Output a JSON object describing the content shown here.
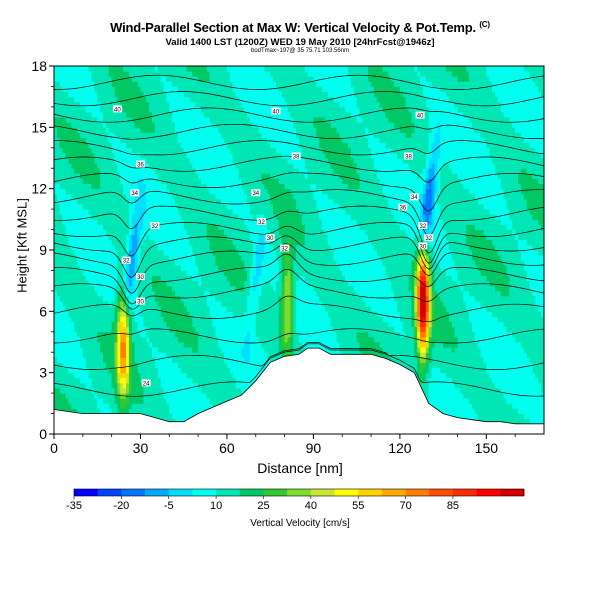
{
  "header": {
    "title": "Wind-Parallel Section at Max W: Vertical Velocity & Pot.Temp.",
    "title_mark": "(C)",
    "subtitle": "Valid 1400 LST (1200Z) WED 19 May 2010 [24hrFcst@1946z]",
    "small_note": "bodTmax~197@ 35 75.71 103.56nm"
  },
  "chart_data": {
    "type": "heatmap",
    "title": "Wind-Parallel Section at Max W: Vertical Velocity & Pot.Temp.",
    "xlabel": "Distance [nm]",
    "ylabel": "Height [Kft MSL]",
    "xlim": [
      0,
      170
    ],
    "ylim": [
      0,
      18
    ],
    "x_ticks": [
      "0",
      "30",
      "60",
      "90",
      "120",
      "150"
    ],
    "x_tick_values": [
      0,
      30,
      60,
      90,
      120,
      150
    ],
    "y_ticks": [
      "0",
      "3",
      "6",
      "9",
      "12",
      "15",
      "18"
    ],
    "y_tick_values": [
      0,
      3,
      6,
      9,
      12,
      15,
      18
    ],
    "colorbar": {
      "label": "Vertical Velocity [cm/s]",
      "tick_labels": [
        "-35",
        "-20",
        "-5",
        "10",
        "25",
        "40",
        "55",
        "70",
        "85"
      ],
      "tick_values": [
        -35,
        -20,
        -5,
        10,
        25,
        40,
        55,
        70,
        85
      ],
      "colors": [
        "#0000ff",
        "#0044ff",
        "#0077ff",
        "#00aaff",
        "#00dfff",
        "#00ffee",
        "#00e6b4",
        "#00c864",
        "#32c832",
        "#7ddc32",
        "#c8e632",
        "#ffff00",
        "#ffd200",
        "#ffaa00",
        "#ff7d00",
        "#ff5000",
        "#ff2a00",
        "#ff0000",
        "#d20000"
      ]
    },
    "background_value": 12,
    "updrafts": [
      {
        "name": "left updraft",
        "x": 24,
        "center_height": 4.5,
        "peak": 60
      },
      {
        "name": "right updraft",
        "x": 128,
        "center_height": 6.5,
        "peak": 95
      },
      {
        "name": "mid updraft",
        "x": 81,
        "center_height": 6.5,
        "peak": 35
      }
    ],
    "downdrafts": [
      {
        "name": "left downdraft",
        "x": 27,
        "center_height": 8.5,
        "peak": -25
      },
      {
        "name": "right downdraft",
        "x": 130,
        "center_height": 11.5,
        "peak": -30
      },
      {
        "name": "mid downdraft",
        "x": 70,
        "center_height": 7.5,
        "peak": -15
      }
    ],
    "terrain": {
      "x": [
        0,
        10,
        20,
        25,
        30,
        35,
        40,
        45,
        50,
        55,
        60,
        65,
        70,
        75,
        80,
        85,
        88,
        92,
        96,
        100,
        105,
        110,
        115,
        120,
        125,
        130,
        135,
        140,
        145,
        150,
        155,
        160,
        165,
        170
      ],
      "height": [
        1.2,
        1.0,
        1.0,
        1.0,
        1.0,
        0.8,
        0.6,
        0.6,
        1.0,
        1.3,
        1.6,
        1.9,
        2.6,
        3.5,
        3.8,
        3.9,
        4.2,
        4.2,
        3.9,
        3.9,
        3.9,
        3.9,
        3.7,
        3.4,
        3.0,
        1.5,
        1.0,
        0.8,
        0.7,
        0.6,
        0.6,
        0.5,
        0.5,
        0.5
      ]
    },
    "isentrope_levels": [
      2.2,
      3.5,
      4.8,
      6.0,
      7.0,
      7.8,
      8.6,
      9.3,
      10.0,
      10.8,
      11.6,
      12.4,
      13.2,
      14.0,
      14.8,
      15.6,
      16.4,
      17.2
    ],
    "isentrope_labels": [
      {
        "text": "24",
        "x": 32,
        "height": 2.5
      },
      {
        "text": "30",
        "x": 30,
        "height": 6.5
      },
      {
        "text": "30",
        "x": 30,
        "height": 7.7
      },
      {
        "text": "32",
        "x": 25,
        "height": 8.5
      },
      {
        "text": "32",
        "x": 35,
        "height": 10.2
      },
      {
        "text": "34",
        "x": 28,
        "height": 11.8
      },
      {
        "text": "36",
        "x": 30,
        "height": 13.2
      },
      {
        "text": "40",
        "x": 22,
        "height": 15.9
      },
      {
        "text": "32",
        "x": 72,
        "height": 10.4
      },
      {
        "text": "34",
        "x": 70,
        "height": 11.8
      },
      {
        "text": "30",
        "x": 75,
        "height": 9.6
      },
      {
        "text": "32",
        "x": 80,
        "height": 9.1
      },
      {
        "text": "38",
        "x": 84,
        "height": 13.6
      },
      {
        "text": "40",
        "x": 77,
        "height": 15.8
      },
      {
        "text": "38",
        "x": 123,
        "height": 13.6
      },
      {
        "text": "40",
        "x": 127,
        "height": 15.6
      },
      {
        "text": "36",
        "x": 121,
        "height": 11.1
      },
      {
        "text": "34",
        "x": 125,
        "height": 11.6
      },
      {
        "text": "32",
        "x": 128,
        "height": 10.2
      },
      {
        "text": "32",
        "x": 130,
        "height": 9.6
      },
      {
        "text": "30",
        "x": 128,
        "height": 9.2
      }
    ]
  }
}
